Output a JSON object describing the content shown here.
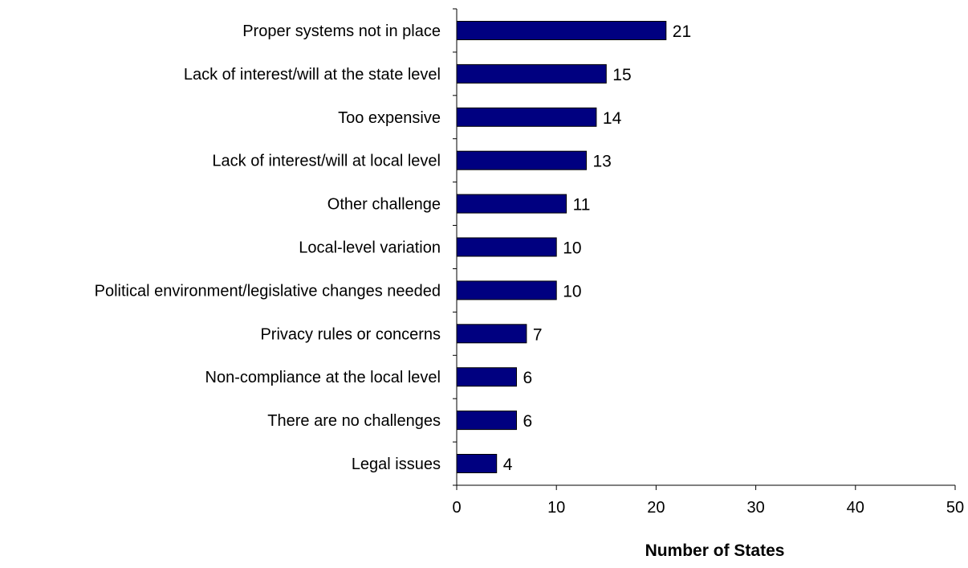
{
  "chart_data": {
    "type": "bar",
    "orientation": "horizontal",
    "categories": [
      "Proper systems not in place",
      "Lack of interest/will at the state level",
      "Too expensive",
      "Lack of interest/will at local level",
      "Other challenge",
      "Local-level variation",
      "Political environment/legislative changes needed",
      "Privacy rules or concerns",
      "Non-compliance at the local level",
      "There are no challenges",
      "Legal issues"
    ],
    "values": [
      21,
      15,
      14,
      13,
      11,
      10,
      10,
      7,
      6,
      6,
      4
    ],
    "data_labels": [
      "21",
      "15",
      "14",
      "13",
      "11",
      "10",
      "10",
      "7",
      "6",
      "6",
      "4"
    ],
    "xlabel": "Number of States",
    "ylabel": "",
    "xlim": [
      0,
      50
    ],
    "xticks": [
      0,
      10,
      20,
      30,
      40,
      50
    ],
    "xtick_labels": [
      "0",
      "10",
      "20",
      "30",
      "40",
      "50"
    ],
    "grid": false,
    "legend": "none",
    "colors": {
      "bar_fill": "#000080",
      "bar_stroke": "#000000",
      "axis": "#000000"
    }
  }
}
